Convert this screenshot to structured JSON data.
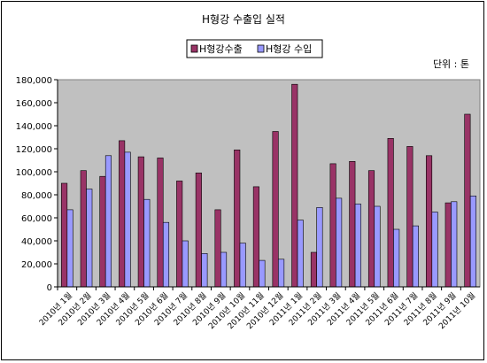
{
  "chart_data": {
    "type": "bar",
    "title": "H형강 수출입 실적",
    "unit_label": "단위 : 톤",
    "categories": [
      "2010년 1월",
      "2010년 2월",
      "2010년 3월",
      "2010년 4월",
      "2010년 5월",
      "2010년 6월",
      "2010년 7월",
      "2010년 8월",
      "2010년 9월",
      "2010년 10월",
      "2010년 11월",
      "2010년 12월",
      "2011년 1월",
      "2011년 2월",
      "2011년 3월",
      "2011년 4월",
      "2011년 5월",
      "2011년 6월",
      "2011년 7월",
      "2011년 8월",
      "2011년 9월",
      "2011년 10월"
    ],
    "series": [
      {
        "name": "H형강수출",
        "color": "#993366",
        "values": [
          90000,
          101000,
          96000,
          127000,
          113000,
          112000,
          92000,
          99000,
          67000,
          119000,
          87000,
          135000,
          176000,
          30000,
          107000,
          109000,
          101000,
          129000,
          122000,
          114000,
          73000,
          150000
        ]
      },
      {
        "name": "H형강 수입",
        "color": "#9999ff",
        "values": [
          67000,
          85000,
          114000,
          117000,
          76000,
          56000,
          40000,
          29000,
          30000,
          38000,
          23000,
          24000,
          58000,
          69000,
          77000,
          72000,
          70000,
          50000,
          53000,
          65000,
          74000,
          79000
        ]
      }
    ],
    "ylim": [
      0,
      180000
    ],
    "yticks": [
      "0",
      "20,000",
      "40,000",
      "60,000",
      "80,000",
      "100,000",
      "120,000",
      "140,000",
      "160,000",
      "180,000"
    ],
    "grid": false,
    "legend": "top-center",
    "plot_bg": "#c0c0c0"
  }
}
